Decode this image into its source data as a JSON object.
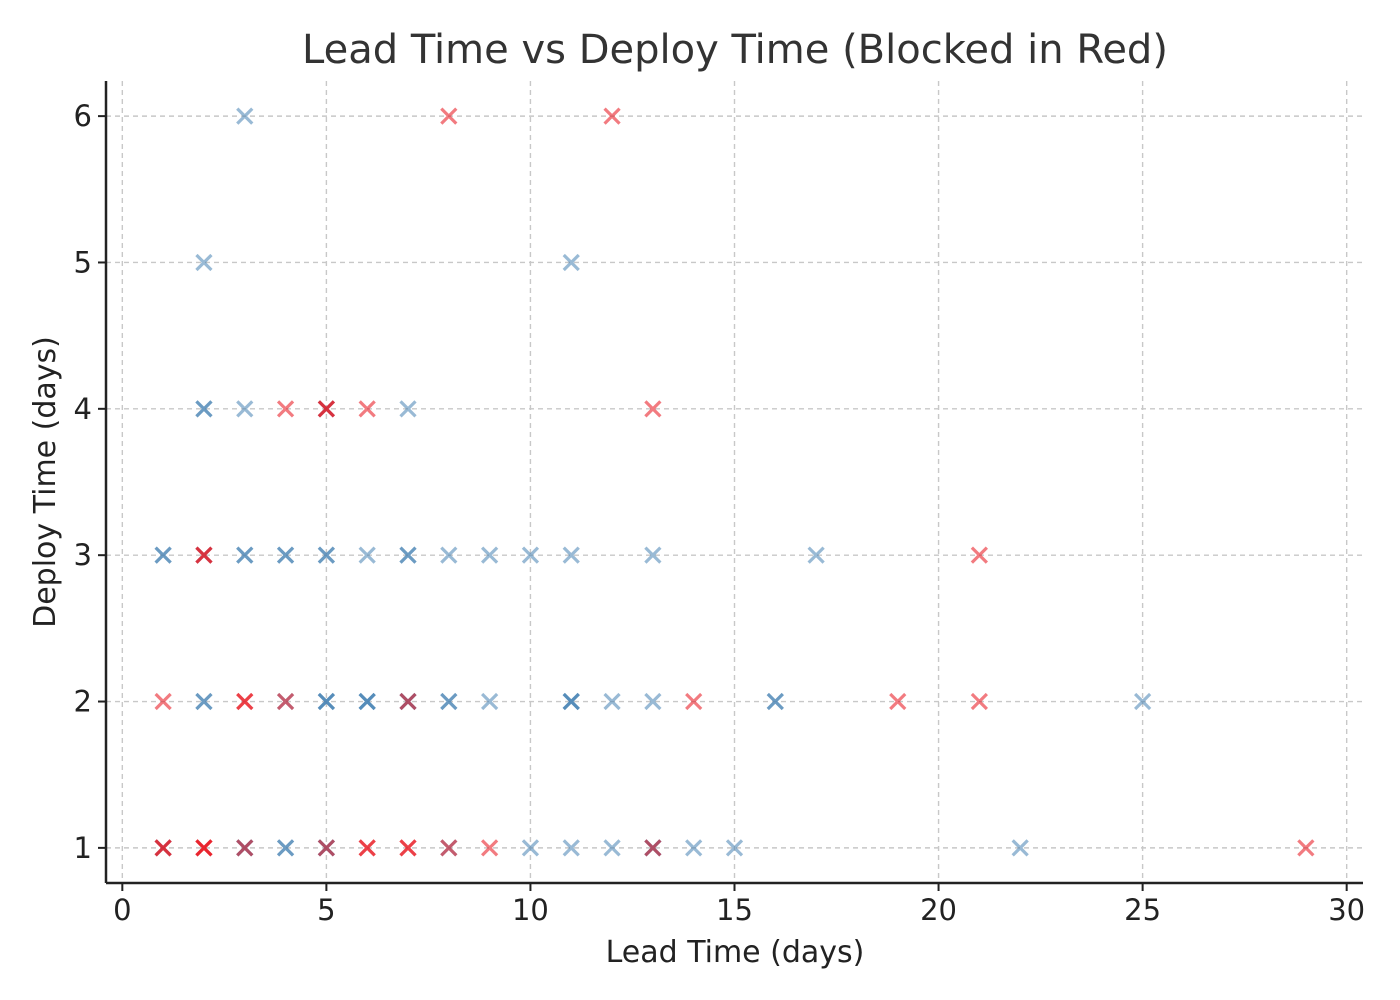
{
  "chart_data": {
    "type": "scatter",
    "title": "Lead Time vs Deploy Time (Blocked in Red)",
    "xlabel": "Lead Time (days)",
    "ylabel": "Deploy Time (days)",
    "xlim": [
      -0.4,
      30.4
    ],
    "ylim": [
      0.76,
      6.24
    ],
    "xticks": [
      0,
      5,
      10,
      15,
      20,
      25,
      30
    ],
    "yticks": [
      1,
      2,
      3,
      4,
      5,
      6
    ],
    "grid": true,
    "marker": "x",
    "colors": {
      "not_blocked": "#4682b4",
      "blocked": "#e8101a"
    },
    "series": [
      {
        "key": "not_blocked",
        "opacity": 0.55,
        "points": [
          [
            1,
            1
          ],
          [
            3,
            1
          ],
          [
            3,
            1
          ],
          [
            4,
            1
          ],
          [
            4,
            1
          ],
          [
            5,
            1
          ],
          [
            5,
            1
          ],
          [
            8,
            1
          ],
          [
            10,
            1
          ],
          [
            11,
            1
          ],
          [
            12,
            1
          ],
          [
            13,
            1
          ],
          [
            13,
            1
          ],
          [
            14,
            1
          ],
          [
            15,
            1
          ],
          [
            22,
            1
          ],
          [
            2,
            2
          ],
          [
            2,
            2
          ],
          [
            4,
            2
          ],
          [
            5,
            2
          ],
          [
            5,
            2
          ],
          [
            5,
            2
          ],
          [
            6,
            2
          ],
          [
            6,
            2
          ],
          [
            6,
            2
          ],
          [
            7,
            2
          ],
          [
            7,
            2
          ],
          [
            8,
            2
          ],
          [
            8,
            2
          ],
          [
            9,
            2
          ],
          [
            11,
            2
          ],
          [
            11,
            2
          ],
          [
            11,
            2
          ],
          [
            12,
            2
          ],
          [
            13,
            2
          ],
          [
            16,
            2
          ],
          [
            16,
            2
          ],
          [
            25,
            2
          ],
          [
            1,
            3
          ],
          [
            1,
            3
          ],
          [
            2,
            3
          ],
          [
            3,
            3
          ],
          [
            3,
            3
          ],
          [
            4,
            3
          ],
          [
            4,
            3
          ],
          [
            5,
            3
          ],
          [
            5,
            3
          ],
          [
            6,
            3
          ],
          [
            7,
            3
          ],
          [
            7,
            3
          ],
          [
            8,
            3
          ],
          [
            9,
            3
          ],
          [
            10,
            3
          ],
          [
            11,
            3
          ],
          [
            13,
            3
          ],
          [
            17,
            3
          ],
          [
            2,
            4
          ],
          [
            2,
            4
          ],
          [
            3,
            4
          ],
          [
            5,
            4
          ],
          [
            7,
            4
          ],
          [
            2,
            5
          ],
          [
            11,
            5
          ],
          [
            3,
            6
          ]
        ]
      },
      {
        "key": "blocked",
        "opacity": 0.55,
        "points": [
          [
            1,
            1
          ],
          [
            1,
            1
          ],
          [
            2,
            1
          ],
          [
            2,
            1
          ],
          [
            2,
            1
          ],
          [
            3,
            1
          ],
          [
            5,
            1
          ],
          [
            6,
            1
          ],
          [
            6,
            1
          ],
          [
            7,
            1
          ],
          [
            7,
            1
          ],
          [
            8,
            1
          ],
          [
            9,
            1
          ],
          [
            13,
            1
          ],
          [
            29,
            1
          ],
          [
            1,
            2
          ],
          [
            3,
            2
          ],
          [
            3,
            2
          ],
          [
            4,
            2
          ],
          [
            7,
            2
          ],
          [
            14,
            2
          ],
          [
            19,
            2
          ],
          [
            21,
            2
          ],
          [
            2,
            3
          ],
          [
            2,
            3
          ],
          [
            21,
            3
          ],
          [
            4,
            4
          ],
          [
            5,
            4
          ],
          [
            5,
            4
          ],
          [
            6,
            4
          ],
          [
            13,
            4
          ],
          [
            8,
            6
          ],
          [
            12,
            6
          ]
        ]
      }
    ]
  }
}
